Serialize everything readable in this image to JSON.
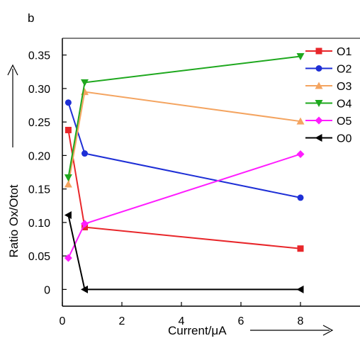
{
  "chart_data": {
    "type": "line",
    "panel_label": "b",
    "xlabel": "Current/μA",
    "ylabel": "Ratio Ox/Otot",
    "xlim": [
      0,
      10
    ],
    "ylim": [
      -0.025,
      0.375
    ],
    "x_ticks": [
      {
        "v": 0,
        "label": "0"
      },
      {
        "v": 2,
        "label": "2"
      },
      {
        "v": 4,
        "label": "4"
      },
      {
        "v": 6,
        "label": "6"
      },
      {
        "v": 8,
        "label": "8"
      }
    ],
    "y_ticks": [
      {
        "v": 0,
        "label": "0"
      },
      {
        "v": 0.05,
        "label": "0.05"
      },
      {
        "v": 0.1,
        "label": "0.10"
      },
      {
        "v": 0.15,
        "label": "0.15"
      },
      {
        "v": 0.2,
        "label": "0.20"
      },
      {
        "v": 0.25,
        "label": "0.25"
      },
      {
        "v": 0.3,
        "label": "0.30"
      },
      {
        "v": 0.35,
        "label": "0.35"
      }
    ],
    "x": [
      0.2,
      0.75,
      8
    ],
    "series": [
      {
        "name": "O1",
        "color": "#e8262a",
        "marker": "square",
        "values": [
          0.238,
          0.093,
          0.061
        ]
      },
      {
        "name": "O2",
        "color": "#1e2fd6",
        "marker": "circle",
        "values": [
          0.279,
          0.203,
          0.137
        ]
      },
      {
        "name": "O3",
        "color": "#f4a460",
        "marker": "triangle-up",
        "values": [
          0.157,
          0.295,
          0.251
        ]
      },
      {
        "name": "O4",
        "color": "#1ea81e",
        "marker": "triangle-down",
        "values": [
          0.167,
          0.309,
          0.348
        ]
      },
      {
        "name": "O5",
        "color": "#ff1cff",
        "marker": "diamond",
        "values": [
          0.047,
          0.098,
          0.202
        ]
      },
      {
        "name": "O0",
        "color": "#000000",
        "marker": "triangle-left",
        "values": [
          0.111,
          0.0,
          0.0
        ]
      }
    ],
    "legend": {
      "placement": "top-right",
      "labels": [
        "O1",
        "O2",
        "O3",
        "O4",
        "O5",
        "O0"
      ]
    }
  }
}
